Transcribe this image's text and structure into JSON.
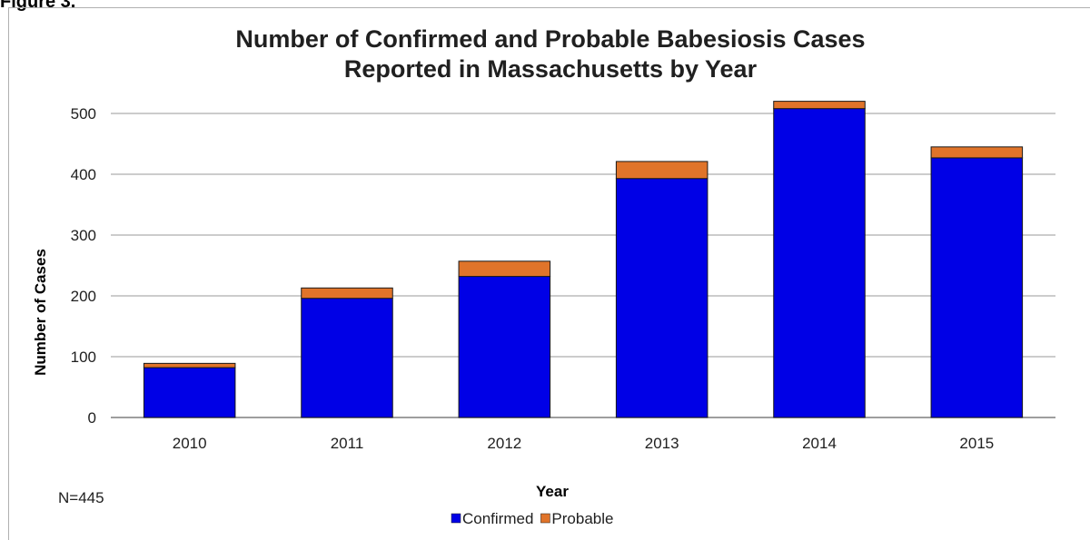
{
  "figure_label": "Figure 3.",
  "note": "N=445",
  "chart_data": {
    "type": "bar",
    "stacked": true,
    "title": "Number of Confirmed and Probable Babesiosis Cases\nReported in Massachusetts by Year",
    "title_lines": [
      "Number of Confirmed and Probable Babesiosis Cases",
      "Reported in Massachusetts by Year"
    ],
    "xlabel": "Year",
    "ylabel": "Number of Cases",
    "categories": [
      "2010",
      "2011",
      "2012",
      "2013",
      "2014",
      "2015"
    ],
    "series": [
      {
        "name": "Confirmed",
        "color": "#0000e6",
        "values": [
          82,
          196,
          232,
          393,
          508,
          427
        ]
      },
      {
        "name": "Probable",
        "color": "#e0742a",
        "values": [
          7,
          17,
          25,
          28,
          12,
          18
        ]
      }
    ],
    "ylim": [
      0,
      500
    ],
    "yticks": [
      0,
      100,
      200,
      300,
      400,
      500
    ],
    "grid": true,
    "legend_position": "bottom"
  }
}
